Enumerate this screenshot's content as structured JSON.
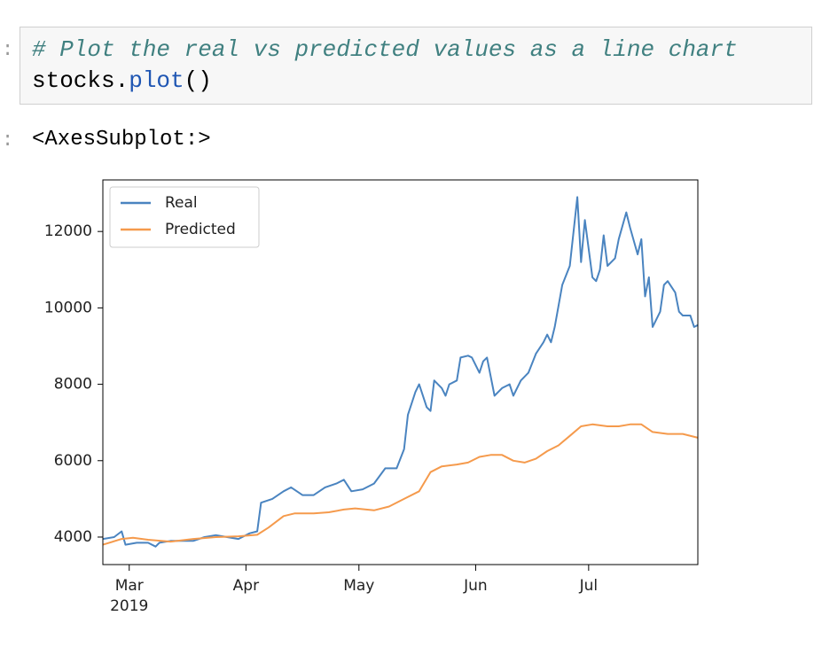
{
  "cell": {
    "in_prompt": ":",
    "code_comment": "# Plot the real vs predicted values as a line chart",
    "code_line": [
      "stocks.",
      "plot",
      "()"
    ],
    "out_prompt": ":",
    "output": "<AxesSubplot:>"
  },
  "chart_data": {
    "type": "line",
    "xlim": [
      0,
      158
    ],
    "ylim": [
      3280,
      13350
    ],
    "xticks": [
      {
        "value": 7,
        "label": "Mar",
        "sublabel": "2019"
      },
      {
        "value": 38,
        "label": "Apr"
      },
      {
        "value": 68,
        "label": "May"
      },
      {
        "value": 99,
        "label": "Jun"
      },
      {
        "value": 129,
        "label": "Jul"
      }
    ],
    "yticks": [
      4000,
      6000,
      8000,
      10000,
      12000
    ],
    "legend": "upper left",
    "series": [
      {
        "name": "Real",
        "color": "#4a84c0",
        "x": [
          0,
          3,
          5,
          6,
          9,
          12,
          14,
          15,
          18,
          21,
          24,
          27,
          30,
          33,
          36,
          39,
          41,
          42,
          45,
          48,
          50,
          53,
          56,
          59,
          62,
          64,
          66,
          69,
          72,
          75,
          78,
          80,
          81,
          83,
          84,
          86,
          87,
          88,
          90,
          91,
          92,
          94,
          95,
          97,
          98,
          100,
          101,
          102,
          104,
          106,
          108,
          109,
          111,
          113,
          115,
          117,
          118,
          119,
          120,
          122,
          124,
          126,
          127,
          128,
          130,
          131,
          132,
          133,
          134,
          136,
          137,
          139,
          140,
          142,
          143,
          144,
          145,
          146,
          148,
          149,
          150,
          152,
          153,
          154,
          156,
          157,
          158
        ],
        "values": [
          3950,
          4000,
          4150,
          3800,
          3850,
          3850,
          3750,
          3850,
          3900,
          3900,
          3900,
          4000,
          4050,
          4000,
          3950,
          4100,
          4150,
          4900,
          5000,
          5200,
          5300,
          5100,
          5100,
          5300,
          5400,
          5500,
          5200,
          5250,
          5400,
          5800,
          5800,
          6300,
          7200,
          7800,
          8000,
          7400,
          7300,
          8100,
          7900,
          7700,
          8000,
          8100,
          8700,
          8750,
          8700,
          8300,
          8600,
          8700,
          7700,
          7900,
          8000,
          7700,
          8100,
          8300,
          8800,
          9100,
          9300,
          9100,
          9500,
          10600,
          11100,
          12900,
          11200,
          12300,
          10800,
          10700,
          11000,
          11900,
          11100,
          11300,
          11800,
          12500,
          12100,
          11400,
          11800,
          10300,
          10800,
          9500,
          9900,
          10600,
          10700,
          10400,
          9900,
          9800,
          9800,
          9500,
          9550
        ]
      },
      {
        "name": "Predicted",
        "color": "#f59a4c",
        "x": [
          0,
          5,
          8,
          12,
          18,
          24,
          30,
          36,
          41,
          44,
          48,
          51,
          56,
          60,
          64,
          67,
          72,
          76,
          80,
          84,
          87,
          90,
          94,
          97,
          100,
          103,
          106,
          109,
          112,
          115,
          118,
          121,
          124,
          127,
          130,
          134,
          137,
          140,
          143,
          146,
          150,
          154,
          158
        ],
        "values": [
          3800,
          3950,
          3980,
          3930,
          3880,
          3950,
          4000,
          4020,
          4060,
          4250,
          4550,
          4620,
          4620,
          4650,
          4720,
          4750,
          4700,
          4800,
          5000,
          5200,
          5700,
          5850,
          5900,
          5950,
          6100,
          6150,
          6150,
          6000,
          5950,
          6050,
          6250,
          6400,
          6650,
          6900,
          6950,
          6900,
          6900,
          6950,
          6950,
          6750,
          6700,
          6700,
          6600
        ]
      }
    ]
  }
}
